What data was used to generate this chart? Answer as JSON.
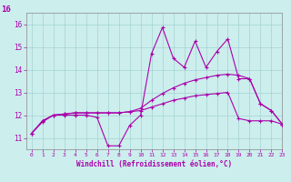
{
  "xlabel": "Windchill (Refroidissement éolien,°C)",
  "xlim": [
    -0.5,
    23
  ],
  "ylim": [
    10.5,
    16.5
  ],
  "yticks": [
    11,
    12,
    13,
    14,
    15,
    16
  ],
  "xticks": [
    0,
    1,
    2,
    3,
    4,
    5,
    6,
    7,
    8,
    9,
    10,
    11,
    12,
    13,
    14,
    15,
    16,
    17,
    18,
    19,
    20,
    21,
    22,
    23
  ],
  "bg_color": "#cceeed",
  "line_color": "#aa00aa",
  "line1_x": [
    0,
    1,
    2,
    3,
    4,
    5,
    6,
    7,
    8,
    9,
    10,
    11,
    12,
    13,
    14,
    15,
    16,
    17,
    18,
    19,
    20,
    21,
    22,
    23
  ],
  "line1_y": [
    11.2,
    11.7,
    12.0,
    12.0,
    12.0,
    12.0,
    11.9,
    10.65,
    10.65,
    11.55,
    12.0,
    14.7,
    15.85,
    14.5,
    14.1,
    15.25,
    14.1,
    14.8,
    15.35,
    13.6,
    13.6,
    12.5,
    12.2,
    11.6
  ],
  "line2_x": [
    0,
    1,
    2,
    3,
    4,
    5,
    6,
    7,
    8,
    9,
    10,
    11,
    12,
    13,
    14,
    15,
    16,
    17,
    18,
    19,
    20,
    21,
    22,
    23
  ],
  "line2_y": [
    11.2,
    11.75,
    12.0,
    12.05,
    12.1,
    12.1,
    12.1,
    12.1,
    12.1,
    12.15,
    12.3,
    12.65,
    12.95,
    13.2,
    13.4,
    13.55,
    13.65,
    13.75,
    13.8,
    13.75,
    13.6,
    12.5,
    12.2,
    11.6
  ],
  "line3_x": [
    0,
    1,
    2,
    3,
    4,
    5,
    6,
    7,
    8,
    9,
    10,
    11,
    12,
    13,
    14,
    15,
    16,
    17,
    18,
    19,
    20,
    21,
    22,
    23
  ],
  "line3_y": [
    11.2,
    11.75,
    12.0,
    12.05,
    12.1,
    12.1,
    12.1,
    12.1,
    12.1,
    12.15,
    12.2,
    12.35,
    12.5,
    12.65,
    12.75,
    12.85,
    12.9,
    12.95,
    13.0,
    11.85,
    11.75,
    11.75,
    11.75,
    11.6
  ],
  "ylabel_outside": "16",
  "ylabel_outside_fontsize": 6.5
}
